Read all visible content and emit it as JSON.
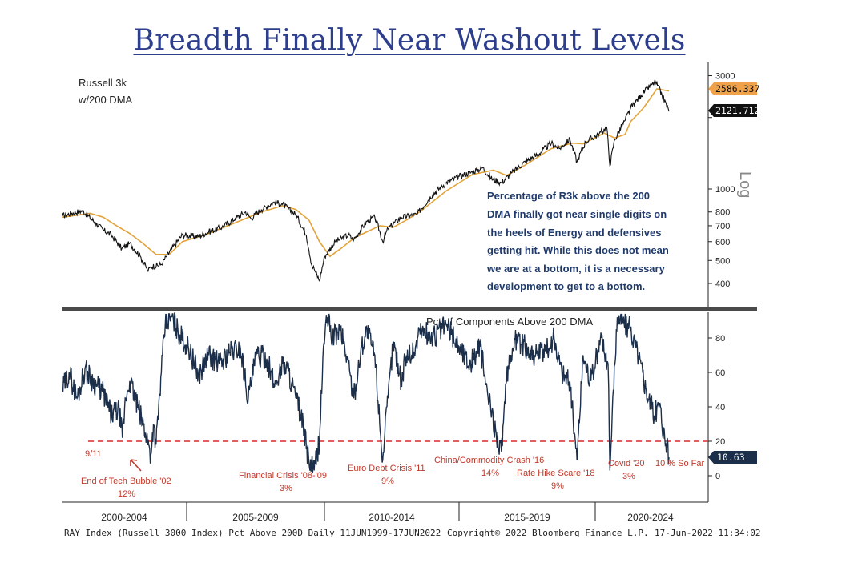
{
  "page_title": "Breadth Finally Near Washout Levels",
  "top_panel": {
    "label_line1": "Russell 3k",
    "label_line2": "w/200 DMA",
    "scale_label": "Log",
    "commentary": [
      "Percentage of R3k above the 200",
      "DMA finally got near single digits on",
      "the heels of Energy and defensives",
      "getting hit. While this does not mean",
      "we are at a bottom, it is a necessary",
      "development to get to a bottom."
    ],
    "last_dma_value": "2586.337",
    "last_price_value": "2121.712"
  },
  "bottom_panel": {
    "title": "Pct of Components Above 200 DMA",
    "last_value": "10.63",
    "threshold": 20,
    "annotations": [
      {
        "id": "911",
        "text": "9/11",
        "x": 2001.7
      },
      {
        "id": "tech",
        "text": "End of Tech Bubble '02",
        "sub": "12%",
        "x": 2002.6
      },
      {
        "id": "gfc",
        "text": "Financial Crisis '08-'09",
        "sub": "3%",
        "x": 2009.1
      },
      {
        "id": "euro",
        "text": "Euro Debt Crisis '11",
        "sub": "9%",
        "x": 2011.6
      },
      {
        "id": "china",
        "text": "China/Commodity Crash '16",
        "sub": "14%",
        "x": 2016.1
      },
      {
        "id": "rate",
        "text": "Rate Hike Scare '18",
        "sub": "9%",
        "x": 2018.9
      },
      {
        "id": "covid",
        "text": "Covid '20",
        "sub": "3%",
        "x": 2020.2
      },
      {
        "id": "sofar",
        "text": "10 % So Far",
        "x": 2022.3
      }
    ]
  },
  "colors": {
    "price": "#111111",
    "dma": "#e3a33a",
    "breadth": "#1c2f4a",
    "threshold": "#d62a2a",
    "annotation": "#c0392b",
    "title": "#2c3e8c",
    "commentary": "#1f3a6b",
    "dma_tag": "#f0a24a"
  },
  "footer": {
    "source": "RAY Index (Russell 3000 Index) Pct Above 200D  Daily 11JUN1999-17JUN2022",
    "copyright": "Copyright© 2022 Bloomberg Finance L.P.",
    "timestamp": "17-Jun-2022 11:34:02"
  },
  "chart_data": [
    {
      "type": "line",
      "title": "Russell 3k w/200 DMA",
      "y_scale": "log",
      "y_ticks": [
        400,
        500,
        600,
        700,
        800,
        1000,
        2000,
        3000
      ],
      "y_tick_labels": [
        "400",
        "500",
        "600",
        "700",
        "800",
        "1000",
        "",
        "3000"
      ],
      "xlim": [
        1999.45,
        2022.46
      ],
      "x_tick_labels": [
        "2000-2004",
        "2005-2009",
        "2010-2014",
        "2015-2019",
        "2020-2024"
      ],
      "series": [
        {
          "name": "Russell 3k",
          "x": [
            1999.45,
            1999.8,
            2000.2,
            2000.7,
            2001.0,
            2001.3,
            2001.7,
            2002.0,
            2002.4,
            2002.7,
            2002.8,
            2003.2,
            2003.7,
            2004.0,
            2004.6,
            2005.0,
            2005.5,
            2006.0,
            2006.4,
            2006.6,
            2007.0,
            2007.5,
            2007.8,
            2008.3,
            2008.7,
            2008.9,
            2009.0,
            2009.2,
            2009.4,
            2009.8,
            2010.3,
            2010.5,
            2011.0,
            2011.3,
            2011.6,
            2011.8,
            2012.3,
            2012.9,
            2013.5,
            2014.0,
            2014.5,
            2015.0,
            2015.4,
            2015.7,
            2016.1,
            2016.5,
            2017.0,
            2017.5,
            2018.0,
            2018.3,
            2018.7,
            2018.97,
            2019.3,
            2019.8,
            2020.1,
            2020.22,
            2020.4,
            2020.8,
            2021.0,
            2021.4,
            2021.8,
            2021.95,
            2022.2,
            2022.46
          ],
          "values": [
            770,
            790,
            810,
            720,
            670,
            640,
            560,
            590,
            520,
            450,
            470,
            480,
            580,
            640,
            630,
            660,
            690,
            750,
            800,
            750,
            820,
            880,
            860,
            780,
            640,
            480,
            460,
            410,
            520,
            600,
            640,
            610,
            730,
            760,
            600,
            680,
            760,
            780,
            950,
            1060,
            1130,
            1180,
            1230,
            1110,
            1060,
            1170,
            1300,
            1400,
            1560,
            1480,
            1620,
            1300,
            1580,
            1700,
            1820,
            1250,
            1610,
            1950,
            2180,
            2480,
            2750,
            2820,
            2480,
            2121.712
          ]
        },
        {
          "name": "200 DMA",
          "x": [
            1999.45,
            2000.5,
            2001.0,
            2001.5,
            2002.0,
            2002.5,
            2003.0,
            2003.5,
            2004.0,
            2005.0,
            2006.0,
            2007.0,
            2007.8,
            2008.3,
            2008.8,
            2009.2,
            2009.6,
            2010.0,
            2010.5,
            2011.0,
            2011.5,
            2012.0,
            2012.5,
            2013.0,
            2014.0,
            2015.0,
            2015.8,
            2016.3,
            2017.0,
            2018.0,
            2018.8,
            2019.2,
            2020.0,
            2020.4,
            2020.8,
            2021.0,
            2021.5,
            2022.0,
            2022.46
          ],
          "values": [
            760,
            790,
            760,
            700,
            650,
            590,
            530,
            530,
            600,
            650,
            720,
            800,
            850,
            820,
            740,
            600,
            520,
            560,
            620,
            660,
            700,
            690,
            740,
            800,
            980,
            1150,
            1200,
            1140,
            1260,
            1480,
            1560,
            1550,
            1720,
            1640,
            1700,
            1920,
            2200,
            2640,
            2586.337
          ]
        }
      ]
    },
    {
      "type": "line",
      "title": "Pct of Components Above 200 DMA",
      "ylim": [
        -15,
        95
      ],
      "y_ticks": [
        0,
        20,
        40,
        60,
        80
      ],
      "xlim": [
        1999.45,
        2022.46
      ],
      "threshold_line": 20,
      "series": [
        {
          "name": "Pct of Components Above 200 DMA",
          "x": [
            1999.45,
            1999.7,
            2000.0,
            2000.3,
            2000.6,
            2001.0,
            2001.3,
            2001.6,
            2001.72,
            2001.85,
            2002.0,
            2002.3,
            2002.6,
            2002.8,
            2002.9,
            2003.0,
            2003.2,
            2003.35,
            2003.6,
            2003.9,
            2004.3,
            2004.6,
            2005.0,
            2005.4,
            2005.8,
            2006.2,
            2006.5,
            2006.8,
            2007.2,
            2007.5,
            2007.8,
            2008.0,
            2008.3,
            2008.5,
            2008.8,
            2009.0,
            2009.2,
            2009.35,
            2009.5,
            2009.7,
            2010.0,
            2010.3,
            2010.5,
            2010.8,
            2011.0,
            2011.3,
            2011.6,
            2011.8,
            2012.0,
            2012.3,
            2012.5,
            2012.8,
            2013.0,
            2013.5,
            2014.0,
            2014.5,
            2014.9,
            2015.3,
            2015.6,
            2015.9,
            2016.1,
            2016.3,
            2016.6,
            2017.0,
            2017.4,
            2017.8,
            2018.1,
            2018.4,
            2018.7,
            2018.97,
            2019.2,
            2019.5,
            2019.9,
            2020.15,
            2020.22,
            2020.35,
            2020.5,
            2020.7,
            2021.0,
            2021.3,
            2021.6,
            2021.9,
            2022.1,
            2022.3,
            2022.46
          ],
          "values": [
            50,
            60,
            45,
            62,
            55,
            48,
            35,
            38,
            22,
            45,
            55,
            40,
            25,
            12,
            30,
            18,
            60,
            88,
            92,
            82,
            72,
            58,
            70,
            65,
            72,
            74,
            45,
            70,
            68,
            52,
            65,
            62,
            45,
            35,
            8,
            3,
            20,
            75,
            92,
            80,
            85,
            65,
            45,
            75,
            85,
            70,
            9,
            45,
            78,
            55,
            70,
            72,
            85,
            80,
            88,
            75,
            65,
            75,
            45,
            25,
            14,
            55,
            80,
            75,
            70,
            72,
            80,
            60,
            55,
            9,
            70,
            55,
            80,
            65,
            3,
            50,
            92,
            90,
            85,
            70,
            50,
            35,
            42,
            22,
            10.63
          ]
        }
      ]
    }
  ]
}
